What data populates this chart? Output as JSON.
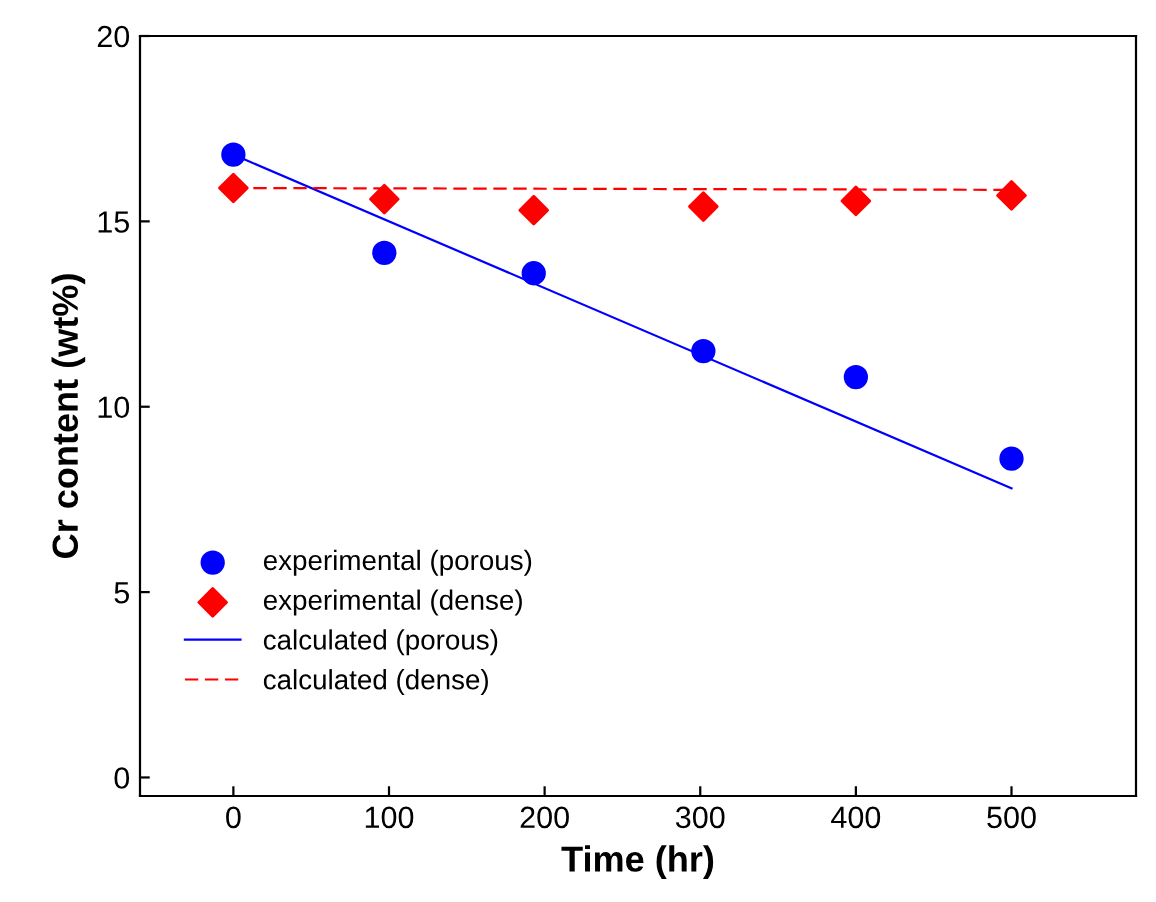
{
  "chart_data": {
    "type": "scatter",
    "xlabel": "Time (hr)",
    "ylabel": "Cr content (wt%)",
    "xlim": [
      -60,
      580
    ],
    "xticks": [
      0,
      100,
      200,
      300,
      400,
      500
    ],
    "ylim": [
      -0.5,
      20
    ],
    "yticks": [
      0,
      5,
      10,
      15,
      20
    ],
    "grid": false,
    "legend": "bottom left",
    "series": [
      {
        "name": "experimental (porous)",
        "marker": "circle",
        "color": "#0000ff",
        "x": [
          0,
          97,
          193,
          302,
          400,
          500
        ],
        "values": [
          16.8,
          14.15,
          13.6,
          11.5,
          10.8,
          8.6
        ]
      },
      {
        "name": "experimental (dense)",
        "marker": "diamond",
        "color": "#ff0000",
        "x": [
          0,
          97,
          193,
          302,
          400,
          500
        ],
        "values": [
          15.9,
          15.6,
          15.3,
          15.4,
          15.55,
          15.7
        ]
      },
      {
        "name": "calculated (porous)",
        "type": "line",
        "line_style": "solid",
        "color": "#0000ff",
        "x": [
          0,
          500
        ],
        "values": [
          16.8,
          7.8
        ]
      },
      {
        "name": "calculated (dense)",
        "type": "line",
        "line_style": "dashed",
        "color": "#ff0000",
        "x": [
          0,
          500
        ],
        "values": [
          15.9,
          15.85
        ]
      }
    ]
  }
}
